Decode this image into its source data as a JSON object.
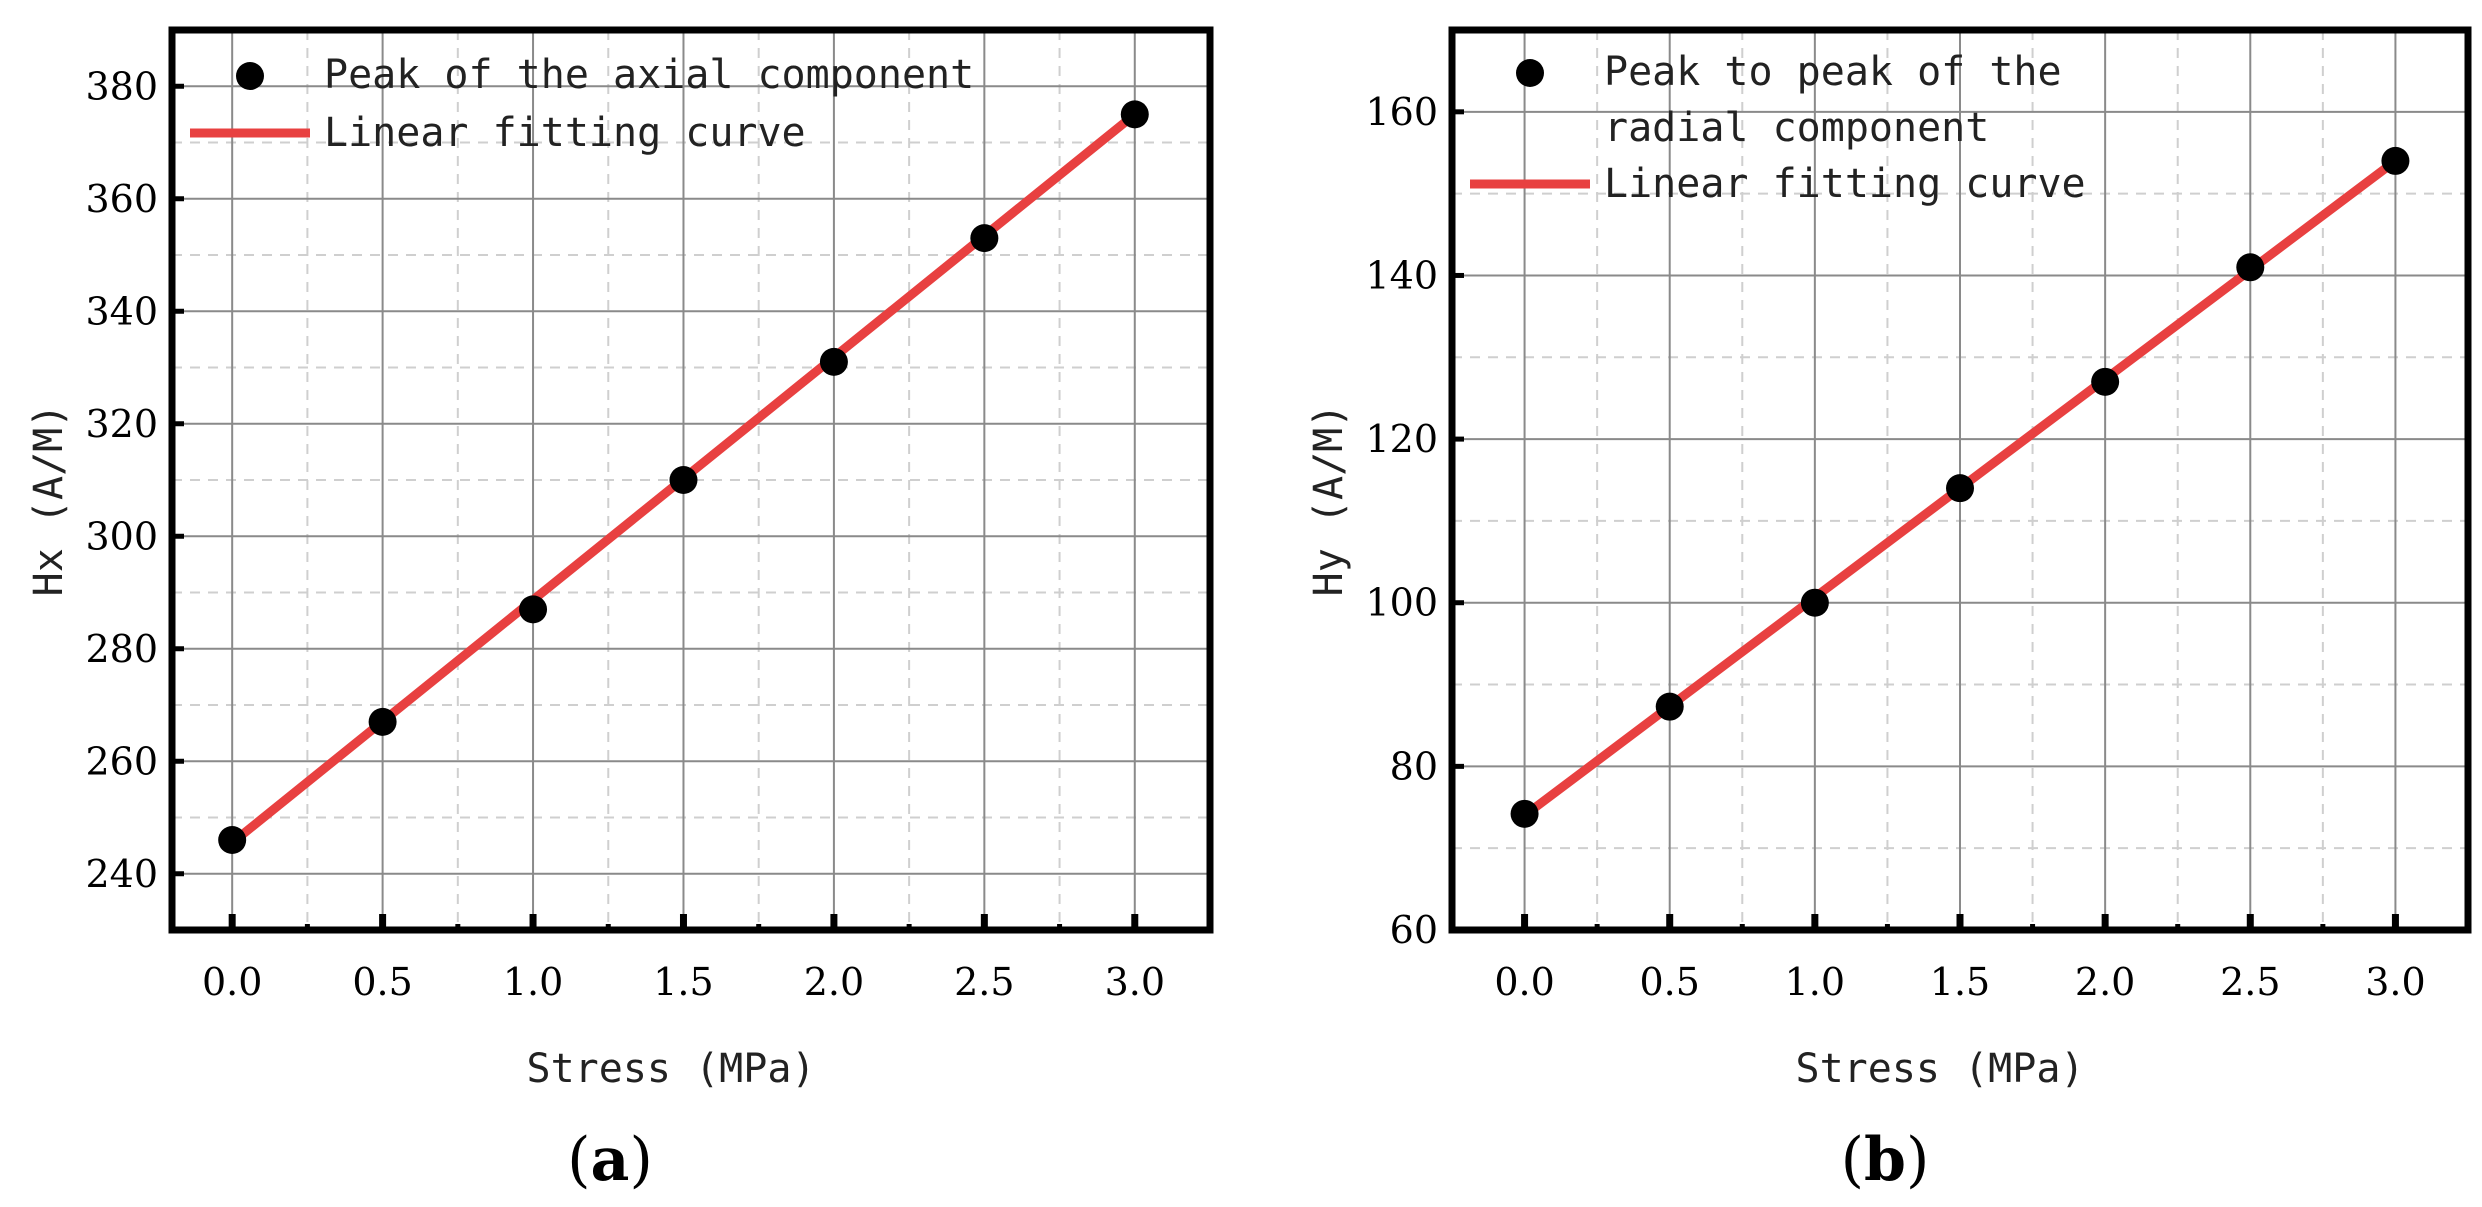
{
  "colors": {
    "fit_line": "#e84040",
    "points": "#000000",
    "grid_major": "#8a8a8a",
    "grid_minor": "#cfcfcf",
    "frame": "#000000"
  },
  "chart_data": [
    {
      "type": "scatter",
      "panel_label": "a",
      "xlabel": "Stress (MPa)",
      "ylabel": "Hx (A/M)",
      "xlim": [
        -0.2,
        3.25
      ],
      "ylim": [
        230,
        390
      ],
      "xticks": [
        0.0,
        0.5,
        1.0,
        1.5,
        2.0,
        2.5,
        3.0
      ],
      "xtick_labels": [
        "0.0",
        "0.5",
        "1.0",
        "1.5",
        "2.0",
        "2.5",
        "3.0"
      ],
      "yticks": [
        240,
        260,
        280,
        300,
        320,
        340,
        360,
        380
      ],
      "ytick_labels": [
        "240",
        "260",
        "280",
        "300",
        "320",
        "340",
        "360",
        "380"
      ],
      "grid": true,
      "legend_position": "top-left",
      "series": [
        {
          "name": "Peak of the axial component",
          "kind": "points",
          "x": [
            0.0,
            0.5,
            1.0,
            1.5,
            2.0,
            2.5,
            3.0
          ],
          "y": [
            246,
            267,
            287,
            310,
            331,
            353,
            375
          ]
        },
        {
          "name": "Linear fitting curve",
          "kind": "line",
          "x": [
            0.0,
            3.0
          ],
          "y": [
            245.5,
            375
          ]
        }
      ]
    },
    {
      "type": "scatter",
      "panel_label": "b",
      "xlabel": "Stress (MPa)",
      "ylabel": "Hy (A/M)",
      "xlim": [
        -0.25,
        3.25
      ],
      "ylim": [
        60,
        170
      ],
      "xticks": [
        0.0,
        0.5,
        1.0,
        1.5,
        2.0,
        2.5,
        3.0
      ],
      "xtick_labels": [
        "0.0",
        "0.5",
        "1.0",
        "1.5",
        "2.0",
        "2.5",
        "3.0"
      ],
      "yticks": [
        60,
        80,
        100,
        120,
        140,
        160
      ],
      "ytick_labels": [
        "60",
        "80",
        "100",
        "120",
        "140",
        "160"
      ],
      "grid": true,
      "legend_position": "top-left",
      "series": [
        {
          "name": "Peak to peak of the radial component",
          "name_lines": [
            "Peak to peak of the",
            "radial component"
          ],
          "kind": "points",
          "x": [
            0.0,
            0.5,
            1.0,
            1.5,
            2.0,
            2.5,
            3.0
          ],
          "y": [
            74.2,
            87.3,
            100.0,
            114.0,
            127.0,
            141.0,
            154.0
          ]
        },
        {
          "name": "Linear fitting curve",
          "kind": "line",
          "x": [
            0.0,
            3.0
          ],
          "y": [
            74.0,
            154.0
          ]
        }
      ]
    }
  ]
}
